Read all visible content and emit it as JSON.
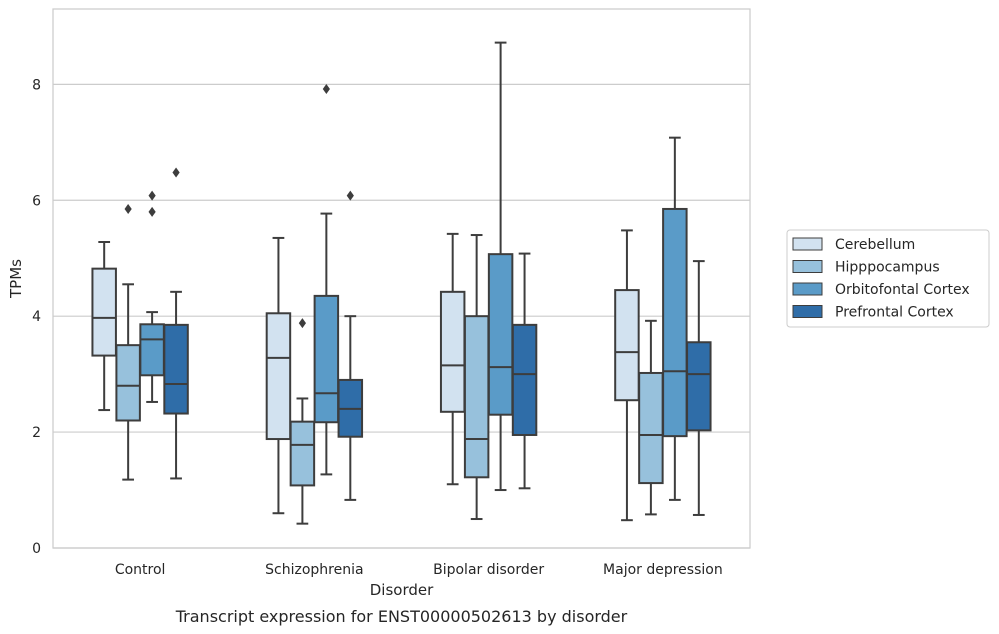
{
  "chart_data": {
    "type": "boxplot",
    "xlabel": "Disorder",
    "ylabel": "TPMs",
    "caption": "Transcript expression for ENST00000502613 by disorder",
    "categories": [
      "Control",
      "Schizophrenia",
      "Bipolar disorder",
      "Major depression"
    ],
    "ylim": [
      0,
      9.3
    ],
    "yticks": [
      0,
      2,
      4,
      6,
      8
    ],
    "grid": true,
    "legend_position": "right",
    "series": [
      {
        "name": "Cerebellum",
        "color": "#d2e2f0",
        "boxes": [
          {
            "whislo": 2.38,
            "q1": 3.32,
            "med": 3.97,
            "q3": 4.82,
            "whishi": 5.28,
            "fliers": []
          },
          {
            "whislo": 0.6,
            "q1": 1.88,
            "med": 3.28,
            "q3": 4.05,
            "whishi": 5.35,
            "fliers": []
          },
          {
            "whislo": 1.1,
            "q1": 2.35,
            "med": 3.15,
            "q3": 4.42,
            "whishi": 5.42,
            "fliers": []
          },
          {
            "whislo": 0.48,
            "q1": 2.55,
            "med": 3.38,
            "q3": 4.45,
            "whishi": 5.48,
            "fliers": []
          }
        ]
      },
      {
        "name": "Hipppocampus",
        "color": "#97c1dc",
        "boxes": [
          {
            "whislo": 1.18,
            "q1": 2.2,
            "med": 2.8,
            "q3": 3.5,
            "whishi": 4.55,
            "fliers": [
              5.85
            ]
          },
          {
            "whislo": 0.42,
            "q1": 1.08,
            "med": 1.78,
            "q3": 2.18,
            "whishi": 2.58,
            "fliers": [
              3.88
            ]
          },
          {
            "whislo": 0.5,
            "q1": 1.22,
            "med": 1.88,
            "q3": 4.0,
            "whishi": 5.4,
            "fliers": []
          },
          {
            "whislo": 0.58,
            "q1": 1.12,
            "med": 1.95,
            "q3": 3.02,
            "whishi": 3.92,
            "fliers": []
          }
        ]
      },
      {
        "name": "Orbitofontal Cortex",
        "color": "#5a9bc8",
        "boxes": [
          {
            "whislo": 2.52,
            "q1": 2.98,
            "med": 3.6,
            "q3": 3.86,
            "whishi": 4.07,
            "fliers": [
              5.8,
              6.08
            ]
          },
          {
            "whislo": 1.27,
            "q1": 2.17,
            "med": 2.67,
            "q3": 4.35,
            "whishi": 5.77,
            "fliers": [
              7.92
            ]
          },
          {
            "whislo": 1.0,
            "q1": 2.3,
            "med": 3.12,
            "q3": 5.07,
            "whishi": 8.72,
            "fliers": []
          },
          {
            "whislo": 0.83,
            "q1": 1.93,
            "med": 3.05,
            "q3": 5.85,
            "whishi": 7.08,
            "fliers": []
          }
        ]
      },
      {
        "name": "Prefrontal Cortex",
        "color": "#2f6da8",
        "boxes": [
          {
            "whislo": 1.2,
            "q1": 2.32,
            "med": 2.83,
            "q3": 3.85,
            "whishi": 4.42,
            "fliers": [
              6.48
            ]
          },
          {
            "whislo": 0.83,
            "q1": 1.92,
            "med": 2.4,
            "q3": 2.9,
            "whishi": 4.0,
            "fliers": [
              6.08
            ]
          },
          {
            "whislo": 1.03,
            "q1": 1.95,
            "med": 3.0,
            "q3": 3.85,
            "whishi": 5.08,
            "fliers": []
          },
          {
            "whislo": 0.57,
            "q1": 2.03,
            "med": 3.0,
            "q3": 3.55,
            "whishi": 4.95,
            "fliers": []
          }
        ]
      }
    ]
  }
}
